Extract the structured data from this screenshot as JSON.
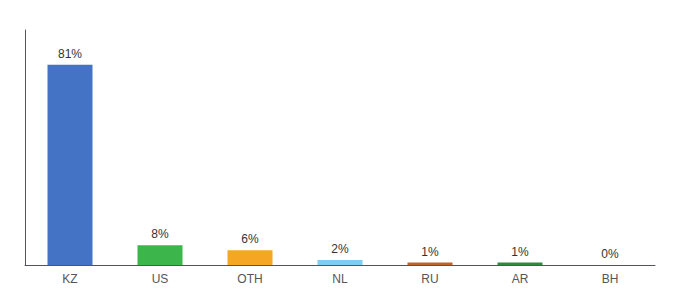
{
  "chart_data": {
    "type": "bar",
    "categories": [
      "KZ",
      "US",
      "OTH",
      "NL",
      "RU",
      "AR",
      "BH"
    ],
    "values": [
      81,
      8,
      6,
      2,
      1,
      1,
      0
    ],
    "value_labels": [
      "81%",
      "8%",
      "6%",
      "2%",
      "1%",
      "1%",
      "0%"
    ],
    "data_labels": true,
    "colors": [
      "#4472c4",
      "#3cb54a",
      "#f5a623",
      "#7ecef4",
      "#c0632b",
      "#2d8a40",
      "#c0632b"
    ],
    "ylim": [
      0,
      95
    ],
    "tick_labels": "x",
    "grid": false
  }
}
